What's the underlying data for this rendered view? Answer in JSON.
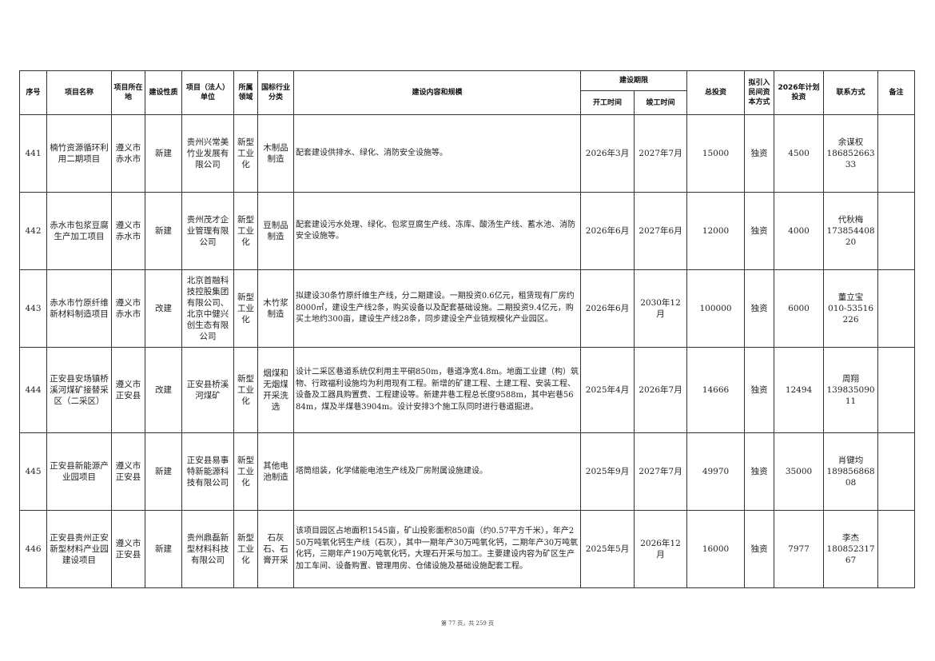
{
  "headers": {
    "seq": "序号",
    "name": "项目名称",
    "location": "项目所在地",
    "nature": "建设性质",
    "unit": "项目（法人）单位",
    "domain": "所属领域",
    "industry": "国标行业分类",
    "content": "建设内容和规模",
    "period": "建设期限",
    "start": "开工时间",
    "end": "竣工时间",
    "total": "总投资",
    "capital": "拟引入民间资本方式",
    "plan": "2026年计划投资",
    "contact": "联系方式",
    "remark": "备注"
  },
  "rows": [
    {
      "seq": "441",
      "name": "楠竹资源循环利用二期项目",
      "location": "遵义市赤水市",
      "nature": "新建",
      "unit": "贵州兴常美竹业发展有限公司",
      "domain": "新型工业化",
      "industry": "木制品制造",
      "content": "配套建设供排水、绿化、消防安全设施等。",
      "start": "2026年3月",
      "end": "2027年7月",
      "total": "15000",
      "capital": "独资",
      "plan": "4500",
      "contact_name": "余谋权",
      "contact_phone": "18685266333",
      "remark": ""
    },
    {
      "seq": "442",
      "name": "赤水市包浆豆腐生产加工项目",
      "location": "遵义市赤水市",
      "nature": "新建",
      "unit": "贵州茂才企业管理有限公司",
      "domain": "新型工业化",
      "industry": "豆制品制造",
      "content": "配套建设污水处理、绿化、包浆豆腐生产线、冻库、酸汤生产线、蓄水池、消防安全设施等。",
      "start": "2026年6月",
      "end": "2027年6月",
      "total": "12000",
      "capital": "独资",
      "plan": "4000",
      "contact_name": "代秋梅",
      "contact_phone": "17385440820",
      "remark": ""
    },
    {
      "seq": "443",
      "name": "赤水市竹原纤维新材料制造项目",
      "location": "遵义市赤水市",
      "nature": "改建",
      "unit": "北京首融科技控股集团有限公司、北京中健兴创生态有限公司",
      "domain": "新型工业化",
      "industry": "木竹浆制造",
      "content": "拟建设30条竹原纤维生产线，分二期建设。一期投资0.6亿元，租赁现有厂房约8000㎡，建设生产线2条，购买设备以及配套基础设施。二期投资9.4亿元，购买土地约300亩，建设生产线28条，同步建设全产业链规模化产业园区。",
      "start": "2026年6月",
      "end": "2030年12月",
      "total": "100000",
      "capital": "独资",
      "plan": "6000",
      "contact_name": "董立宝",
      "contact_phone": "010-53516226",
      "remark": ""
    },
    {
      "seq": "444",
      "name": "正安县安场镇桥溪河煤矿接替采区（二采区）",
      "location": "遵义市正安县",
      "nature": "改建",
      "unit": "正安县桥溪河煤矿",
      "domain": "新型工业化",
      "industry": "烟煤和无烟煤开采洗选",
      "content": "设计二采区巷道系统仅利用主平硐850m，巷道净宽4.8m。地面工业建（构）筑物、行政福利设施均为利用现有工程。新增的矿建工程、土建工程、安装工程、设备及工器具购置费、工程建设等。新建井巷工程总长度9588m，其中岩巷5684m，煤及半煤巷3904m。设计安排3个施工队同时进行巷道掘进。",
      "start": "2025年4月",
      "end": "2026年7月",
      "total": "14666",
      "capital": "独资",
      "plan": "12494",
      "contact_name": "周翔",
      "contact_phone": "13983509011",
      "remark": ""
    },
    {
      "seq": "445",
      "name": "正安县新能源产业园项目",
      "location": "遵义市正安县",
      "nature": "新建",
      "unit": "正安县易事特新能源科技有限公司",
      "domain": "新型工业化",
      "industry": "其他电池制造",
      "content": "塔筒组装，化学储能电池生产线及厂房附属设施建设。",
      "start": "2025年9月",
      "end": "2027年7月",
      "total": "49970",
      "capital": "独资",
      "plan": "35000",
      "contact_name": "肖键均",
      "contact_phone": "18985686808",
      "remark": ""
    },
    {
      "seq": "446",
      "name": "正安县贵州正安新型材料产业园建设项目",
      "location": "遵义市正安县",
      "nature": "新建",
      "unit": "贵州鼎磊新型材料科技有限公司",
      "domain": "新型工业化",
      "industry": "石灰石、石膏开采",
      "content": "该项目园区占地面积1545亩，矿山投影面积850亩（约0.57平方千米），年产250万吨氧化钙生产线（石灰），其中一期年产30万吨氧化钙，二期年产30万吨氧化钙，三期年产190万吨氧化钙，大理石开采与加工。主要建设内容为矿区生产加工车间、设备购置、管理用房、仓储设施及基础设施配套工程。",
      "start": "2025年5月",
      "end": "2026年12月",
      "total": "16000",
      "capital": "独资",
      "plan": "7977",
      "contact_name": "李杰",
      "contact_phone": "18085231767",
      "remark": ""
    }
  ],
  "footer": "第 77 页，共 259 页"
}
